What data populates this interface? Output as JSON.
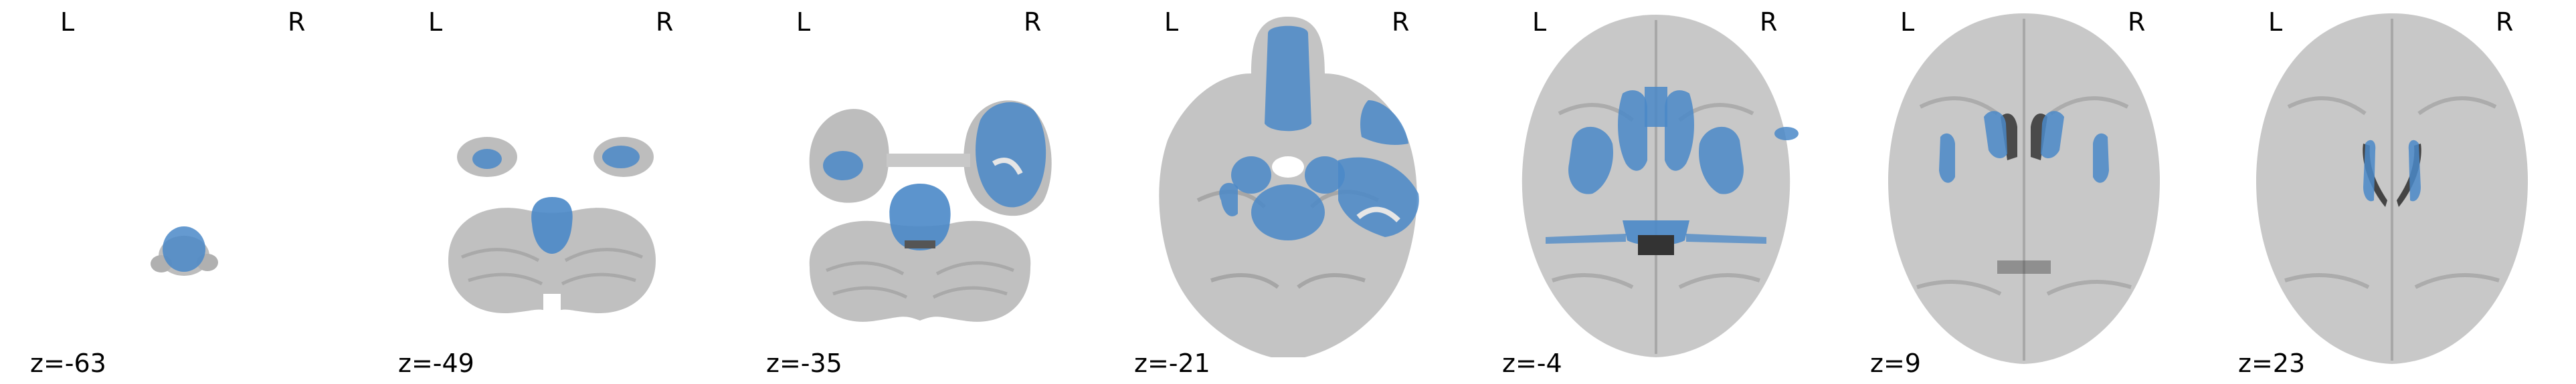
{
  "viewer": {
    "overlay_color": "#4a88c8",
    "brain_color": "#b8b8b8",
    "slices": [
      {
        "left_label": "L",
        "right_label": "R",
        "coord": "z=-63"
      },
      {
        "left_label": "L",
        "right_label": "R",
        "coord": "z=-49"
      },
      {
        "left_label": "L",
        "right_label": "R",
        "coord": "z=-35"
      },
      {
        "left_label": "L",
        "right_label": "R",
        "coord": "z=-21"
      },
      {
        "left_label": "L",
        "right_label": "R",
        "coord": "z=-4"
      },
      {
        "left_label": "L",
        "right_label": "R",
        "coord": "z=9"
      },
      {
        "left_label": "L",
        "right_label": "R",
        "coord": "z=23"
      }
    ]
  }
}
